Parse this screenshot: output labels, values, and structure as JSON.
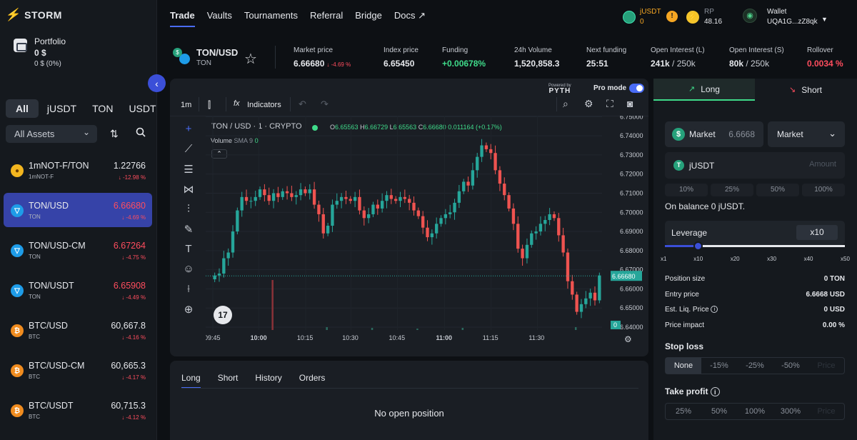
{
  "app": {
    "name": "STORM"
  },
  "portfolio": {
    "label": "Portfolio",
    "value": "0 $",
    "change": "0 $ (0%)"
  },
  "asset_tabs": [
    "All",
    "jUSDT",
    "TON",
    "USDT"
  ],
  "assets_filter": "All Assets",
  "markets": [
    {
      "symbol": "1mNOT-F/TON",
      "sub": "1mNOT-F",
      "price": "1.22766",
      "change": "↓ -12.98 %",
      "coin": "not",
      "price_red": false,
      "active": false
    },
    {
      "symbol": "TON/USD",
      "sub": "TON",
      "price": "6.66680",
      "change": "↓ -4.69 %",
      "coin": "ton",
      "price_red": true,
      "active": true
    },
    {
      "symbol": "TON/USD-CM",
      "sub": "TON",
      "price": "6.67264",
      "change": "↓ -4.75 %",
      "coin": "ton",
      "price_red": true,
      "active": false
    },
    {
      "symbol": "TON/USDT",
      "sub": "TON",
      "price": "6.65908",
      "change": "↓ -4.49 %",
      "coin": "ton",
      "price_red": true,
      "active": false
    },
    {
      "symbol": "BTC/USD",
      "sub": "BTC",
      "price": "60,667.8",
      "change": "↓ -4.16 %",
      "coin": "btc",
      "price_red": false,
      "active": false
    },
    {
      "symbol": "BTC/USD-CM",
      "sub": "BTC",
      "price": "60,665.3",
      "change": "↓ -4.17 %",
      "coin": "btc",
      "price_red": false,
      "active": false
    },
    {
      "symbol": "BTC/USDT",
      "sub": "BTC",
      "price": "60,715.3",
      "change": "↓ -4.12 %",
      "coin": "btc",
      "price_red": false,
      "active": false
    }
  ],
  "nav": [
    "Trade",
    "Vaults",
    "Tournaments",
    "Referral",
    "Bridge",
    "Docs"
  ],
  "topbar": {
    "jusdt_label": "jUSDT",
    "jusdt_value": "0",
    "rp_label": "RP",
    "rp_value": "48.16",
    "wallet_label": "Wallet",
    "wallet_address": "UQA1G...zZ8qk"
  },
  "pair": {
    "name": "TON/USD",
    "sub": "TON"
  },
  "stats": {
    "market_price_label": "Market price",
    "market_price": "6.66680",
    "market_change": "↓ -4.69 %",
    "index_price_label": "Index price",
    "index_price": "6.65450",
    "funding_label": "Funding",
    "funding": "+0.00678%",
    "volume_label": "24h Volume",
    "volume": "1,520,858.3",
    "next_funding_label": "Next funding",
    "next_funding": "25:51",
    "oi_long_label": "Open Interest (L)",
    "oi_long": "241k",
    "oi_long_cap": "/ 250k",
    "oi_short_label": "Open Interest (S)",
    "oi_short": "80k",
    "oi_short_cap": "/ 250k",
    "rollover_label": "Rollover",
    "rollover": "0.0034 %"
  },
  "chart_toolbar": {
    "powered_by": "Powered by",
    "pyth": "PYTH",
    "pro_mode": "Pro mode",
    "interval": "1m",
    "indicators": "Indicators"
  },
  "chart_legend": {
    "title": "TON / USD · 1 · CRYPTO",
    "o_label": "O",
    "o": "6.65563",
    "h_label": "H",
    "h": "6.66729",
    "l_label": "L",
    "l": "6.65563",
    "c_label": "C",
    "c": "6.66680",
    "chg": "0.011164 (+0.17%)",
    "volume": "Volume",
    "sma": "SMA 9",
    "sma_val": "0"
  },
  "chart_data": {
    "type": "candlestick",
    "y_ticks": [
      "6.75000",
      "6.74000",
      "6.73000",
      "6.72000",
      "6.71000",
      "6.70000",
      "6.69000",
      "6.68000",
      "6.67000",
      "6.66000",
      "6.65000",
      "6.64000"
    ],
    "y_range": [
      6.6385,
      6.7505
    ],
    "x_ticks": [
      {
        "label": "09:45",
        "bold": false
      },
      {
        "label": "10:00",
        "bold": true
      },
      {
        "label": "10:15",
        "bold": false
      },
      {
        "label": "10:30",
        "bold": false
      },
      {
        "label": "10:45",
        "bold": false
      },
      {
        "label": "11:00",
        "bold": true
      },
      {
        "label": "11:15",
        "bold": false
      },
      {
        "label": "11:30",
        "bold": false
      }
    ],
    "last_price": "6.66680",
    "last_price_value": 6.6668,
    "volume_value": "0",
    "closes": [
      6.667,
      6.668,
      6.676,
      6.679,
      6.69,
      6.701,
      6.708,
      6.706,
      6.706,
      6.708,
      6.712,
      6.709,
      6.706,
      6.71,
      6.708,
      6.711,
      6.71,
      6.708,
      6.709,
      6.712,
      6.71,
      6.712,
      6.704,
      6.699,
      6.689,
      6.693,
      6.704,
      6.706,
      6.708,
      6.707,
      6.706,
      6.708,
      6.701,
      6.697,
      6.699,
      6.704,
      6.702,
      6.706,
      6.709,
      6.707,
      6.706,
      6.708,
      6.707,
      6.705,
      6.701,
      6.698,
      6.692,
      6.687,
      6.689,
      6.694,
      6.697,
      6.699,
      6.7,
      6.705,
      6.711,
      6.716,
      6.714,
      6.722,
      6.729,
      6.735,
      6.733,
      6.731,
      6.722,
      6.715,
      6.709,
      6.702,
      6.694,
      6.681,
      6.676,
      6.683,
      6.689,
      6.69,
      6.694,
      6.696,
      6.699,
      6.697,
      6.688,
      6.679,
      6.664,
      6.657,
      6.648,
      6.652,
      6.655,
      6.658,
      6.654,
      6.667
    ]
  },
  "bottom_tabs": [
    "Long",
    "Short",
    "History",
    "Orders"
  ],
  "no_position": "No open position",
  "order": {
    "long_label": "Long",
    "short_label": "Short",
    "market_label": "Market",
    "market_value": "6.6668",
    "type_value": "Market",
    "amount_token": "jUSDT",
    "amount_placeholder": "Amount",
    "pcts": [
      "10%",
      "25%",
      "50%",
      "100%"
    ],
    "balance": "On balance 0 jUSDT.",
    "leverage_label": "Leverage",
    "leverage_value": "x10",
    "leverage_level": 10,
    "leverage_ticks": [
      "x1",
      "x10",
      "x20",
      "x30",
      "x40",
      "x50"
    ],
    "position_size_label": "Position size",
    "position_size": "0 TON",
    "entry_price_label": "Entry price",
    "entry_price": "6.6668 USD",
    "liq_label": "Est. Liq. Price",
    "liq_value": "0 USD",
    "impact_label": "Price impact",
    "impact_value": "0.00 %",
    "stop_loss_label": "Stop loss",
    "stop_loss_opts": [
      "None",
      "-15%",
      "-25%",
      "-50%",
      "Price"
    ],
    "take_profit_label": "Take profit",
    "take_profit_opts": [
      "25%",
      "50%",
      "100%",
      "300%",
      "Price"
    ]
  }
}
